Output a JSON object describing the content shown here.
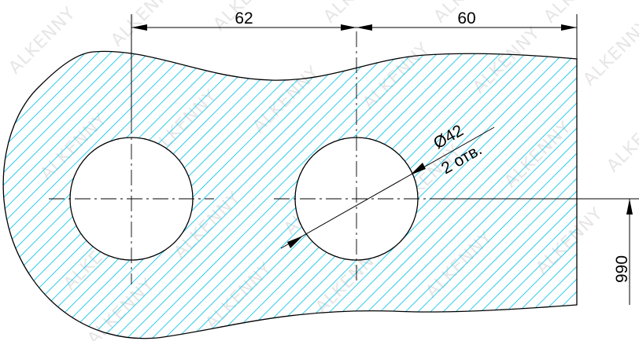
{
  "colors": {
    "hatch": "#33ccee",
    "line": "#000000",
    "background": "#ffffff",
    "watermark": "#e3e3e3"
  },
  "dimensions": {
    "dim_left": "62",
    "dim_right": "60",
    "hole_diameter": "Ø42",
    "hole_count": "2 отв.",
    "side_height": "990"
  },
  "watermark": {
    "text": "ALKENNY"
  }
}
